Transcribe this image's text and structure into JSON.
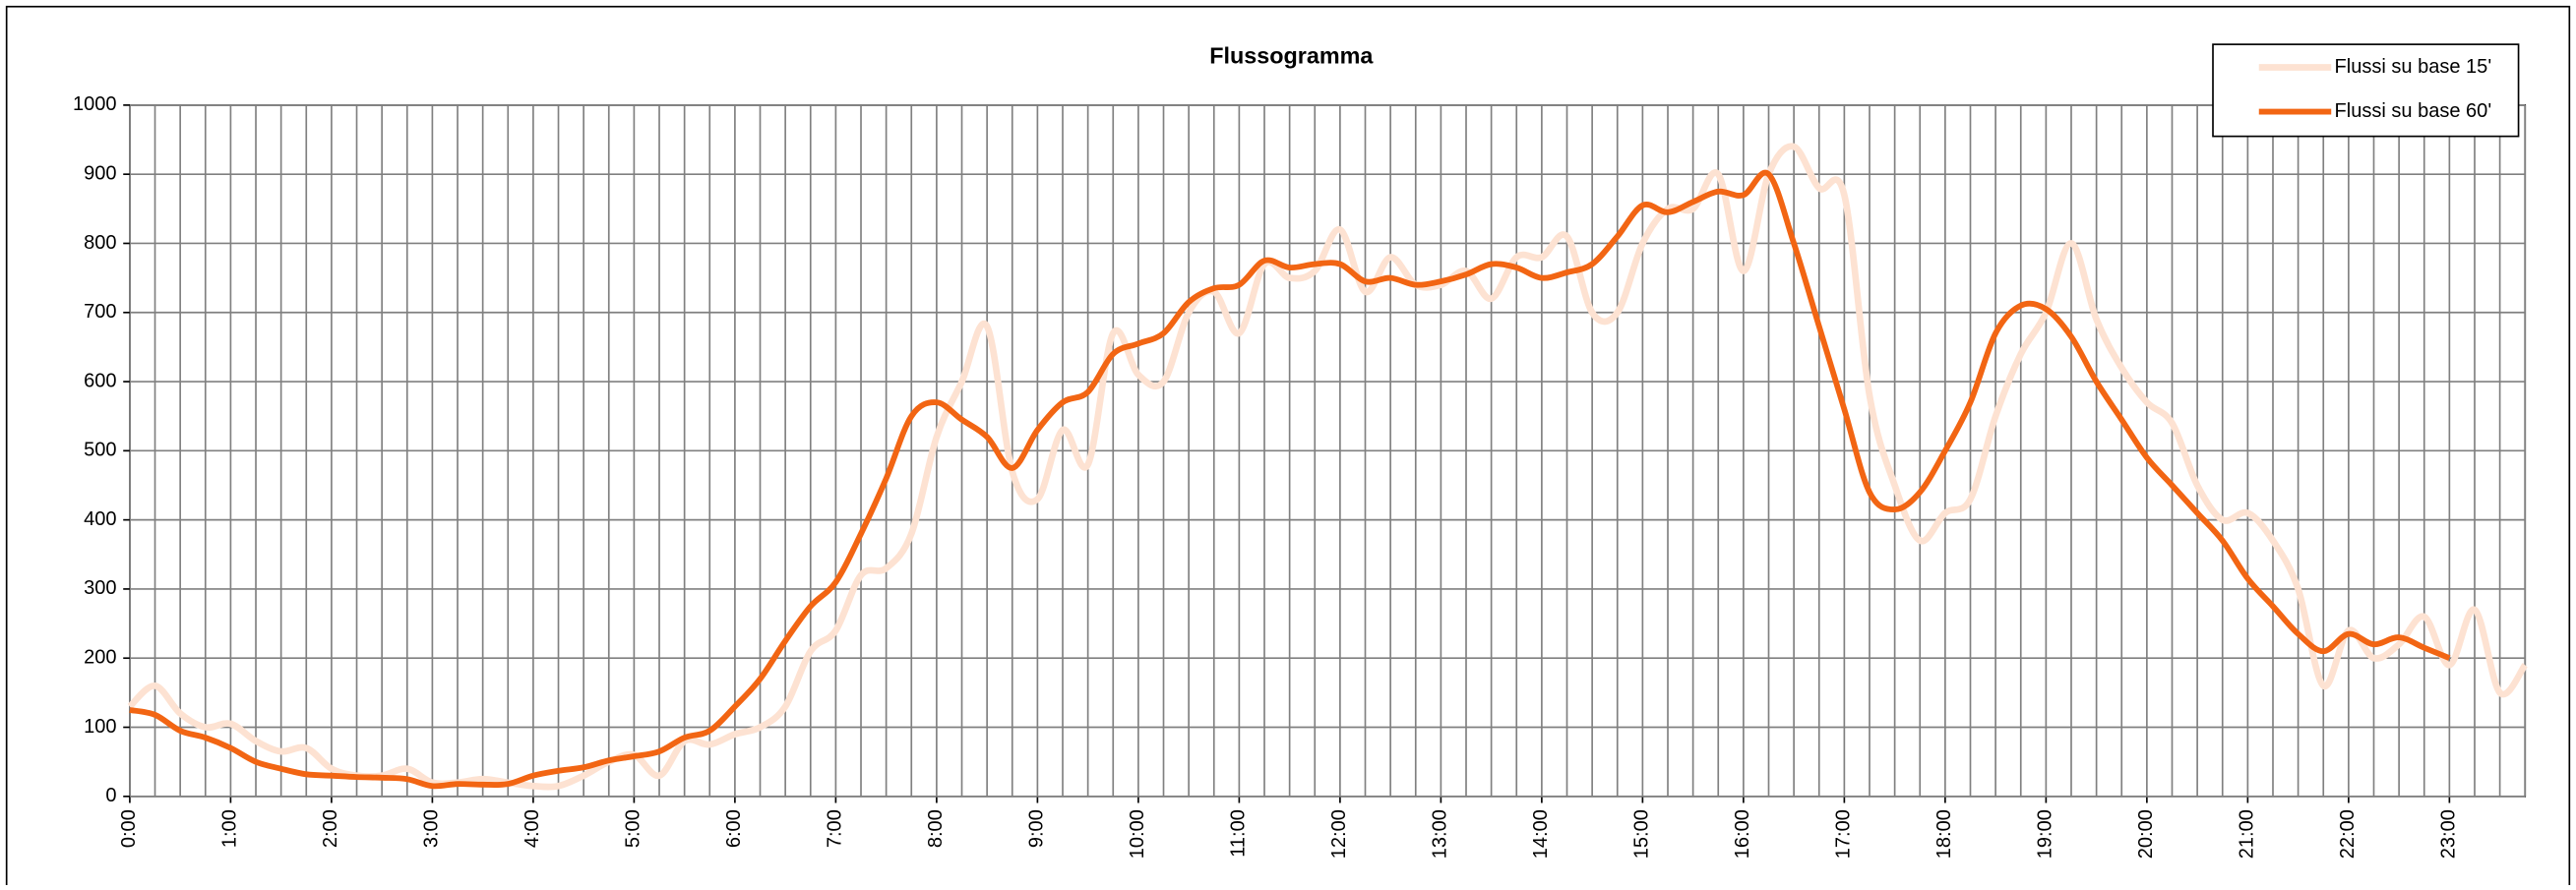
{
  "chart_data": {
    "type": "line",
    "title": "Flussogramma",
    "categories": [
      "0:00",
      null,
      null,
      null,
      "1:00",
      null,
      null,
      null,
      "2:00",
      null,
      null,
      null,
      "3:00",
      null,
      null,
      null,
      "4:00",
      null,
      null,
      null,
      "5:00",
      null,
      null,
      null,
      "6:00",
      null,
      null,
      null,
      "7:00",
      null,
      null,
      null,
      "8:00",
      null,
      null,
      null,
      "9:00",
      null,
      null,
      null,
      "10:00",
      null,
      null,
      null,
      "11:00",
      null,
      null,
      null,
      "12:00",
      null,
      null,
      null,
      "13:00",
      null,
      null,
      null,
      "14:00",
      null,
      null,
      null,
      "15:00",
      null,
      null,
      null,
      "16:00",
      null,
      null,
      null,
      "17:00",
      null,
      null,
      null,
      "18:00",
      null,
      null,
      null,
      "19:00",
      null,
      null,
      null,
      "20:00",
      null,
      null,
      null,
      "21:00",
      null,
      null,
      null,
      "22:00",
      null,
      null,
      null,
      "23:00",
      null,
      null,
      null
    ],
    "series": [
      {
        "name": "Flussi su base 15'",
        "color": "#fde2d2",
        "values": [
          130,
          160,
          120,
          100,
          105,
          80,
          65,
          70,
          40,
          30,
          30,
          40,
          20,
          20,
          25,
          20,
          15,
          15,
          30,
          50,
          60,
          30,
          80,
          75,
          90,
          100,
          130,
          210,
          240,
          320,
          330,
          380,
          520,
          600,
          680,
          470,
          430,
          530,
          480,
          670,
          610,
          600,
          700,
          730,
          670,
          770,
          750,
          760,
          820,
          730,
          780,
          740,
          740,
          760,
          720,
          780,
          780,
          810,
          700,
          700,
          800,
          850,
          850,
          900,
          760,
          900,
          940,
          880,
          870,
          580,
          450,
          370,
          410,
          430,
          550,
          640,
          700,
          800,
          690,
          620,
          570,
          540,
          450,
          400,
          410,
          370,
          300,
          160,
          240,
          200,
          220,
          260,
          190,
          270,
          150,
          190
        ]
      },
      {
        "name": "Flussi su base 60'",
        "color": "#f26513",
        "values": [
          125,
          118,
          95,
          85,
          70,
          50,
          40,
          32,
          30,
          28,
          27,
          25,
          15,
          18,
          17,
          18,
          30,
          37,
          42,
          52,
          58,
          65,
          85,
          95,
          130,
          170,
          225,
          275,
          310,
          380,
          460,
          550,
          570,
          545,
          520,
          475,
          530,
          570,
          585,
          640,
          655,
          670,
          715,
          735,
          740,
          775,
          765,
          770,
          770,
          745,
          750,
          740,
          745,
          755,
          770,
          765,
          750,
          758,
          770,
          810,
          855,
          845,
          860,
          875,
          870,
          900,
          800,
          680,
          560,
          440,
          415,
          440,
          500,
          570,
          670,
          710,
          705,
          665,
          600,
          545,
          490,
          450,
          410,
          370,
          315,
          275,
          235,
          210,
          235,
          220,
          230,
          215,
          200,
          null,
          null,
          null
        ]
      }
    ],
    "ylim": [
      0,
      1000
    ],
    "yticks": [
      0,
      100,
      200,
      300,
      400,
      500,
      600,
      700,
      800,
      900,
      1000
    ],
    "grid": true,
    "legend": "upper right"
  }
}
